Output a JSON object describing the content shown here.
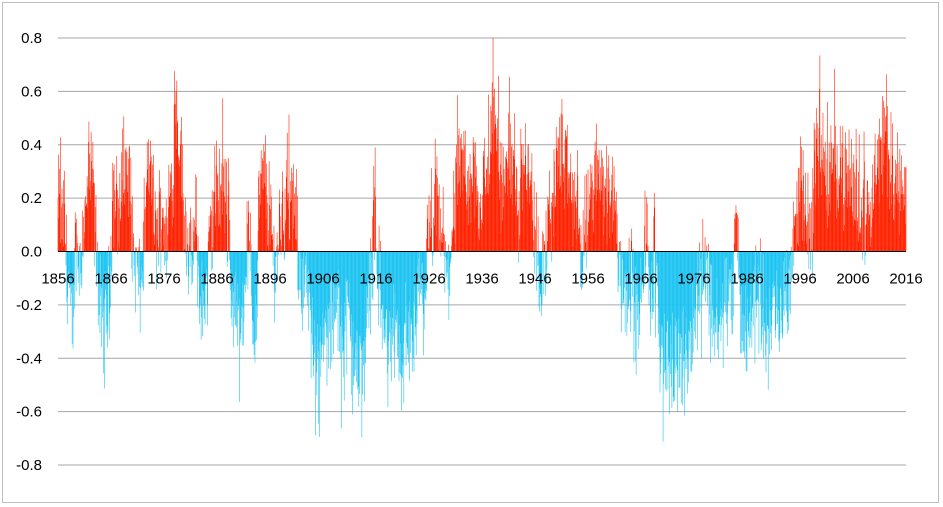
{
  "chart_data": {
    "type": "bar",
    "title": "",
    "xlabel": "",
    "ylabel": "",
    "ylim": [
      -0.8,
      0.8
    ],
    "y_ticks": [
      "0.8",
      "0.6",
      "0.4",
      "0.2",
      "0.0",
      "-0.2",
      "-0.4",
      "-0.6",
      "-0.8"
    ],
    "x_ticks": [
      "1856",
      "1866",
      "1876",
      "1886",
      "1896",
      "1906",
      "1916",
      "1926",
      "1936",
      "1946",
      "1956",
      "1966",
      "1976",
      "1986",
      "1996",
      "2006",
      "2016"
    ],
    "x_range": [
      1856,
      2016
    ],
    "grid": true,
    "legend": "none",
    "colors": {
      "positive": "#ff2200",
      "negative": "#1ec4f2"
    },
    "anchors": [
      [
        1856.0,
        0.18
      ],
      [
        1857.0,
        0.12
      ],
      [
        1858.0,
        -0.12
      ],
      [
        1858.5,
        -0.28
      ],
      [
        1859.5,
        0.05
      ],
      [
        1860.0,
        -0.05
      ],
      [
        1861.0,
        0.12
      ],
      [
        1862.0,
        0.28
      ],
      [
        1863.0,
        0.08
      ],
      [
        1864.0,
        -0.2
      ],
      [
        1864.5,
        -0.32
      ],
      [
        1865.5,
        -0.18
      ],
      [
        1866.5,
        0.22
      ],
      [
        1867.5,
        0.15
      ],
      [
        1868.5,
        0.3
      ],
      [
        1869.5,
        0.2
      ],
      [
        1870.5,
        -0.05
      ],
      [
        1871.5,
        -0.15
      ],
      [
        1872.5,
        0.1
      ],
      [
        1873.5,
        0.32
      ],
      [
        1874.5,
        0.05
      ],
      [
        1875.5,
        0.15
      ],
      [
        1876.5,
        0.05
      ],
      [
        1877.5,
        0.25
      ],
      [
        1878.3,
        0.58
      ],
      [
        1879.0,
        0.4
      ],
      [
        1880.0,
        0.1
      ],
      [
        1881.0,
        -0.05
      ],
      [
        1882.0,
        0.05
      ],
      [
        1883.0,
        -0.22
      ],
      [
        1884.0,
        -0.15
      ],
      [
        1885.0,
        0.1
      ],
      [
        1886.0,
        0.22
      ],
      [
        1887.0,
        0.25
      ],
      [
        1888.0,
        0.15
      ],
      [
        1889.0,
        -0.2
      ],
      [
        1890.0,
        -0.28
      ],
      [
        1891.0,
        -0.1
      ],
      [
        1892.0,
        0.05
      ],
      [
        1893.0,
        -0.3
      ],
      [
        1894.0,
        0.2
      ],
      [
        1895.0,
        0.28
      ],
      [
        1896.0,
        0.1
      ],
      [
        1897.0,
        -0.05
      ],
      [
        1898.0,
        0.12
      ],
      [
        1899.5,
        0.2
      ],
      [
        1900.5,
        0.15
      ],
      [
        1901.5,
        -0.05
      ],
      [
        1902.5,
        -0.12
      ],
      [
        1904.0,
        -0.32
      ],
      [
        1905.5,
        -0.38
      ],
      [
        1907.0,
        -0.3
      ],
      [
        1908.5,
        -0.2
      ],
      [
        1909.5,
        -0.3
      ],
      [
        1910.5,
        -0.25
      ],
      [
        1912.0,
        -0.35
      ],
      [
        1913.0,
        -0.45
      ],
      [
        1914.0,
        -0.3
      ],
      [
        1915.0,
        -0.1
      ],
      [
        1915.8,
        0.15
      ],
      [
        1916.5,
        -0.1
      ],
      [
        1917.5,
        -0.3
      ],
      [
        1918.5,
        -0.35
      ],
      [
        1919.5,
        -0.28
      ],
      [
        1920.5,
        -0.4
      ],
      [
        1921.5,
        -0.3
      ],
      [
        1922.5,
        -0.35
      ],
      [
        1923.5,
        -0.28
      ],
      [
        1924.5,
        -0.15
      ],
      [
        1925.5,
        -0.05
      ],
      [
        1926.5,
        0.05
      ],
      [
        1927.5,
        0.15
      ],
      [
        1928.5,
        0.05
      ],
      [
        1929.5,
        -0.12
      ],
      [
        1930.5,
        0.1
      ],
      [
        1931.5,
        0.25
      ],
      [
        1932.5,
        0.3
      ],
      [
        1933.5,
        0.2
      ],
      [
        1934.5,
        0.3
      ],
      [
        1935.5,
        0.15
      ],
      [
        1936.5,
        0.25
      ],
      [
        1937.5,
        0.35
      ],
      [
        1938.0,
        0.55
      ],
      [
        1939.0,
        0.35
      ],
      [
        1940.0,
        0.2
      ],
      [
        1941.0,
        0.4
      ],
      [
        1942.0,
        0.3
      ],
      [
        1943.0,
        0.15
      ],
      [
        1944.0,
        0.35
      ],
      [
        1945.0,
        0.3
      ],
      [
        1946.0,
        0.05
      ],
      [
        1947.0,
        -0.1
      ],
      [
        1948.0,
        0.0
      ],
      [
        1949.0,
        0.15
      ],
      [
        1950.0,
        0.3
      ],
      [
        1951.0,
        0.35
      ],
      [
        1952.0,
        0.28
      ],
      [
        1953.0,
        0.2
      ],
      [
        1954.0,
        0.1
      ],
      [
        1955.0,
        -0.05
      ],
      [
        1956.0,
        0.15
      ],
      [
        1957.0,
        0.25
      ],
      [
        1958.0,
        0.3
      ],
      [
        1959.0,
        0.2
      ],
      [
        1960.0,
        0.25
      ],
      [
        1961.0,
        0.1
      ],
      [
        1962.0,
        -0.05
      ],
      [
        1963.0,
        -0.15
      ],
      [
        1964.0,
        -0.05
      ],
      [
        1965.0,
        -0.25
      ],
      [
        1966.0,
        -0.2
      ],
      [
        1967.0,
        0.05
      ],
      [
        1968.0,
        -0.15
      ],
      [
        1969.0,
        -0.2
      ],
      [
        1970.0,
        -0.35
      ],
      [
        1971.0,
        -0.4
      ],
      [
        1972.0,
        -0.45
      ],
      [
        1973.0,
        -0.35
      ],
      [
        1974.0,
        -0.42
      ],
      [
        1975.0,
        -0.3
      ],
      [
        1976.0,
        -0.25
      ],
      [
        1977.0,
        -0.12
      ],
      [
        1978.0,
        -0.05
      ],
      [
        1979.0,
        -0.15
      ],
      [
        1980.0,
        -0.25
      ],
      [
        1981.0,
        -0.3
      ],
      [
        1982.0,
        -0.15
      ],
      [
        1983.0,
        -0.2
      ],
      [
        1984.0,
        0.1
      ],
      [
        1985.0,
        -0.28
      ],
      [
        1986.0,
        -0.3
      ],
      [
        1987.0,
        -0.2
      ],
      [
        1988.0,
        -0.1
      ],
      [
        1989.0,
        -0.22
      ],
      [
        1990.0,
        -0.3
      ],
      [
        1991.0,
        -0.2
      ],
      [
        1992.0,
        -0.28
      ],
      [
        1993.0,
        -0.15
      ],
      [
        1994.0,
        -0.1
      ],
      [
        1995.0,
        0.1
      ],
      [
        1996.0,
        0.22
      ],
      [
        1997.0,
        0.18
      ],
      [
        1998.0,
        0.05
      ],
      [
        1999.0,
        0.35
      ],
      [
        2000.0,
        0.4
      ],
      [
        2001.0,
        0.25
      ],
      [
        2002.0,
        0.3
      ],
      [
        2003.0,
        0.32
      ],
      [
        2004.0,
        0.3
      ],
      [
        2005.0,
        0.22
      ],
      [
        2006.0,
        0.25
      ],
      [
        2007.0,
        0.15
      ],
      [
        2008.0,
        0.1
      ],
      [
        2009.0,
        0.2
      ],
      [
        2010.0,
        0.25
      ],
      [
        2011.0,
        0.35
      ],
      [
        2012.0,
        0.45
      ],
      [
        2013.0,
        0.25
      ],
      [
        2014.0,
        0.3
      ],
      [
        2015.0,
        0.2
      ],
      [
        2016.0,
        0.25
      ]
    ],
    "spikes": [
      [
        1862.6,
        0.41
      ],
      [
        1868.8,
        0.39
      ],
      [
        1872.8,
        0.41
      ],
      [
        1878.4,
        0.64
      ],
      [
        1883.0,
        -0.33
      ],
      [
        1888.2,
        0.35
      ],
      [
        1891.0,
        -0.35
      ],
      [
        1893.5,
        -0.33
      ],
      [
        1898.3,
        0.3
      ],
      [
        1905.6,
        -0.47
      ],
      [
        1912.3,
        -0.49
      ],
      [
        1913.8,
        -0.56
      ],
      [
        1915.6,
        0.32
      ],
      [
        1920.6,
        -0.46
      ],
      [
        1922.8,
        -0.45
      ],
      [
        1925.0,
        -0.39
      ],
      [
        1932.4,
        0.38
      ],
      [
        1938.3,
        0.61
      ],
      [
        1941.0,
        0.52
      ],
      [
        1943.3,
        0.46
      ],
      [
        1944.2,
        0.48
      ],
      [
        1950.3,
        0.43
      ],
      [
        1954.0,
        0.38
      ],
      [
        1958.6,
        0.38
      ],
      [
        1960.9,
        0.32
      ],
      [
        1964.0,
        -0.3
      ],
      [
        1968.5,
        0.22
      ],
      [
        1971.6,
        -0.46
      ],
      [
        1973.3,
        -0.51
      ],
      [
        1975.0,
        -0.49
      ],
      [
        1985.6,
        -0.4
      ],
      [
        1990.6,
        -0.37
      ],
      [
        1996.6,
        0.38
      ],
      [
        2000.3,
        0.52
      ],
      [
        2003.6,
        0.47
      ],
      [
        2006.6,
        0.46
      ],
      [
        2008.1,
        0.45
      ],
      [
        2010.6,
        0.42
      ],
      [
        2011.9,
        0.54
      ],
      [
        2013.4,
        0.48
      ],
      [
        2015.2,
        0.36
      ]
    ]
  }
}
